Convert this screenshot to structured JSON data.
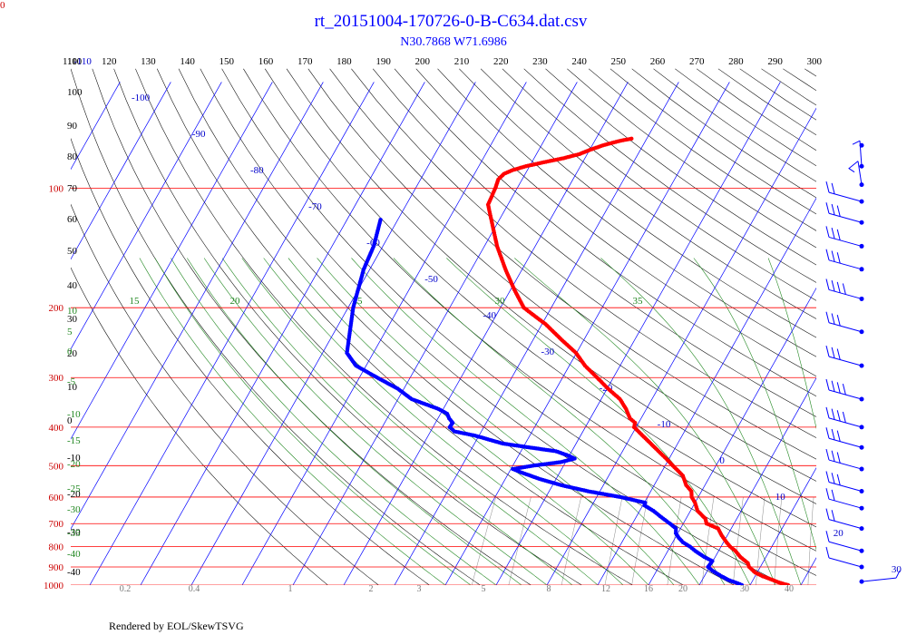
{
  "corner_label": "0",
  "footer": "Rendered by EOL/SkewTSVG",
  "colors": {
    "temperature": "#ff0000",
    "dewpoint": "#0000ff",
    "isobar": "#ff0000",
    "isotherm": "#0000ff",
    "dry_adiabat": "#000000",
    "moist_adiabat": "#228822",
    "mixing_ratio": "#888888",
    "wind_barb": "#0000ff"
  },
  "chart_data": {
    "type": "scatter",
    "chart_kind": "skew-T log-P sounding",
    "title": "rt_20151004-170726-0-B-C634.dat.csv",
    "subtitle": "N30.7868 W71.6986",
    "y_scale": "log",
    "ylim": [
      1000,
      54
    ],
    "pressure_ticks": [
      100,
      200,
      300,
      400,
      500,
      600,
      700,
      800,
      900,
      1000
    ],
    "top_ticks": [
      110,
      120,
      130,
      140,
      150,
      160,
      170,
      180,
      190,
      200,
      210,
      220,
      230,
      240,
      250,
      260,
      270,
      280,
      290,
      300
    ],
    "isotherm_labels": [
      -110,
      -100,
      -90,
      -80,
      -70,
      -60,
      -50,
      -40,
      -30,
      -20,
      -10,
      0,
      10,
      20,
      30
    ],
    "dry_adiabat_labels": [
      110,
      100,
      90,
      80,
      70,
      60,
      50,
      40,
      30,
      20,
      10,
      0,
      -10,
      -20,
      -30,
      -40
    ],
    "moist_adiabat_top_labels": [
      15,
      20,
      25,
      30,
      35
    ],
    "moist_adiabat_left_labels": [
      10,
      5,
      0,
      -5,
      -10,
      -15,
      -20,
      -25,
      -30,
      -35,
      -40
    ],
    "mixing_ratio_labels": [
      "0.2",
      "0.4",
      "1",
      "2",
      "3",
      "5",
      "8",
      "12",
      "16",
      "20",
      "30",
      "40"
    ],
    "series": [
      {
        "name": "temperature",
        "points": [
          [
            1000,
            27.5
          ],
          [
            985,
            25.4
          ],
          [
            970,
            23.8
          ],
          [
            950,
            21.5
          ],
          [
            930,
            19.6
          ],
          [
            900,
            17.8
          ],
          [
            880,
            17.1
          ],
          [
            850,
            15.0
          ],
          [
            820,
            13.3
          ],
          [
            800,
            11.8
          ],
          [
            780,
            10.6
          ],
          [
            750,
            8.9
          ],
          [
            720,
            7.4
          ],
          [
            700,
            4.6
          ],
          [
            680,
            3.8
          ],
          [
            650,
            1.4
          ],
          [
            620,
            0.0
          ],
          [
            600,
            -1.3
          ],
          [
            580,
            -2.0
          ],
          [
            560,
            -3.7
          ],
          [
            530,
            -5.4
          ],
          [
            500,
            -8.5
          ],
          [
            480,
            -10.6
          ],
          [
            460,
            -12.9
          ],
          [
            440,
            -15.3
          ],
          [
            420,
            -17.8
          ],
          [
            400,
            -20.4
          ],
          [
            390,
            -20.7
          ],
          [
            380,
            -22.2
          ],
          [
            360,
            -24.0
          ],
          [
            340,
            -26.3
          ],
          [
            320,
            -29.8
          ],
          [
            300,
            -33.2
          ],
          [
            280,
            -36.9
          ],
          [
            260,
            -40.1
          ],
          [
            240,
            -44.6
          ],
          [
            220,
            -49.3
          ],
          [
            210,
            -52.3
          ],
          [
            200,
            -55.4
          ],
          [
            180,
            -59.3
          ],
          [
            160,
            -63.3
          ],
          [
            140,
            -67.5
          ],
          [
            120,
            -71.6
          ],
          [
            110,
            -73.9
          ],
          [
            100,
            -74.3
          ],
          [
            95,
            -74.7
          ],
          [
            92,
            -74.2
          ],
          [
            90,
            -72.9
          ],
          [
            88,
            -70.7
          ],
          [
            86,
            -67.6
          ],
          [
            84,
            -64.2
          ],
          [
            82,
            -61.5
          ],
          [
            80,
            -59.9
          ],
          [
            78,
            -57.9
          ],
          [
            76,
            -55.1
          ],
          [
            75,
            -53.0
          ]
        ]
      },
      {
        "name": "dewpoint",
        "points": [
          [
            1000,
            18.4
          ],
          [
            990,
            17.4
          ],
          [
            970,
            15.1
          ],
          [
            950,
            13.4
          ],
          [
            920,
            11.0
          ],
          [
            900,
            9.7
          ],
          [
            870,
            9.9
          ],
          [
            850,
            7.9
          ],
          [
            820,
            5.4
          ],
          [
            800,
            3.9
          ],
          [
            780,
            2.0
          ],
          [
            760,
            0.7
          ],
          [
            740,
            -0.4
          ],
          [
            720,
            -0.9
          ],
          [
            700,
            -2.6
          ],
          [
            680,
            -4.5
          ],
          [
            650,
            -7.3
          ],
          [
            630,
            -9.6
          ],
          [
            620,
            -9.8
          ],
          [
            600,
            -15.3
          ],
          [
            580,
            -22.4
          ],
          [
            560,
            -28.3
          ],
          [
            540,
            -33.3
          ],
          [
            520,
            -37.6
          ],
          [
            510,
            -39.6
          ],
          [
            500,
            -36.0
          ],
          [
            490,
            -31.0
          ],
          [
            480,
            -28.6
          ],
          [
            470,
            -30.6
          ],
          [
            460,
            -33.1
          ],
          [
            440,
            -44.4
          ],
          [
            420,
            -50.8
          ],
          [
            410,
            -55.3
          ],
          [
            400,
            -56.7
          ],
          [
            390,
            -56.6
          ],
          [
            380,
            -57.8
          ],
          [
            370,
            -58.7
          ],
          [
            360,
            -60.9
          ],
          [
            340,
            -67.3
          ],
          [
            320,
            -71.2
          ],
          [
            300,
            -76.5
          ],
          [
            280,
            -82.0
          ],
          [
            260,
            -85.2
          ],
          [
            200,
            -89.0
          ],
          [
            160,
            -91.2
          ],
          [
            140,
            -91.8
          ],
          [
            120,
            -93.4
          ]
        ]
      }
    ],
    "wind_barbs": [
      {
        "p": 78,
        "barb": "none"
      },
      {
        "p": 88,
        "barb": "staff"
      },
      {
        "p": 98,
        "barb": "flag"
      },
      {
        "p": 108,
        "barb": "ll"
      },
      {
        "p": 122,
        "barb": "lll"
      },
      {
        "p": 140,
        "barb": "lll"
      },
      {
        "p": 160,
        "barb": "lll"
      },
      {
        "p": 190,
        "barb": "llll"
      },
      {
        "p": 230,
        "barb": "lll"
      },
      {
        "p": 280,
        "barb": "lll"
      },
      {
        "p": 340,
        "barb": "llll"
      },
      {
        "p": 400,
        "barb": "llll"
      },
      {
        "p": 450,
        "barb": "lll"
      },
      {
        "p": 510,
        "barb": "lll"
      },
      {
        "p": 580,
        "barb": "lll"
      },
      {
        "p": 640,
        "barb": "ll"
      },
      {
        "p": 720,
        "barb": "ll"
      },
      {
        "p": 820,
        "barb": "l"
      },
      {
        "p": 900,
        "barb": "l"
      },
      {
        "p": 980,
        "barb": "long"
      }
    ]
  }
}
